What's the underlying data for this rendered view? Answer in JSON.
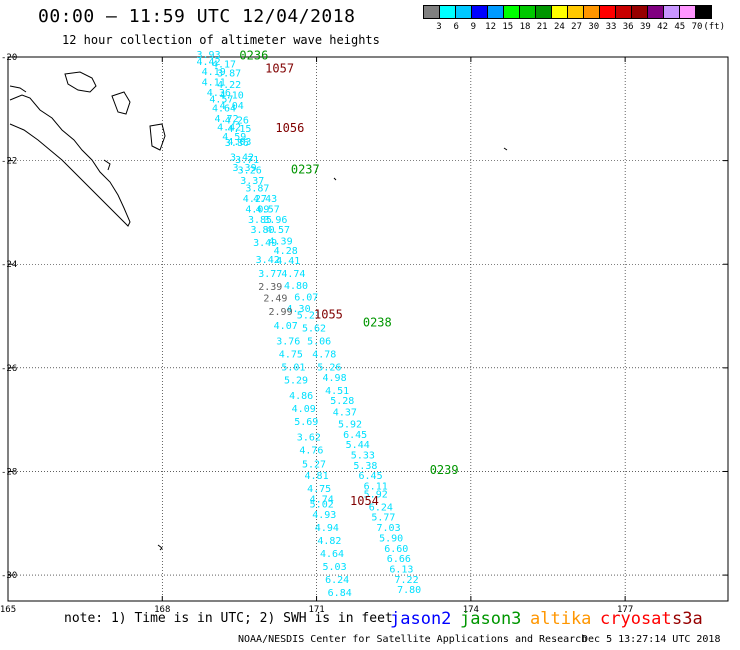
{
  "title": "00:00 – 11:59 UTC 12/04/2018",
  "subtitle": "12 hour collection of altimeter wave heights",
  "colorbar": {
    "colors": [
      "#808080",
      "#00ffff",
      "#00c8ff",
      "#0000ff",
      "#009bff",
      "#00ff00",
      "#00c800",
      "#009600",
      "#ffff00",
      "#ffc800",
      "#ff9600",
      "#ff0000",
      "#c80000",
      "#960000",
      "#800080",
      "#c896ff",
      "#ff96ff",
      "#000000"
    ],
    "labels": [
      "3",
      "6",
      "9",
      "12",
      "15",
      "18",
      "21",
      "24",
      "27",
      "30",
      "33",
      "36",
      "39",
      "42",
      "45",
      "70"
    ],
    "unit": "(ft)"
  },
  "map": {
    "lon_ticks": [
      "165",
      "168",
      "171",
      "174",
      "177"
    ],
    "lat_ticks": [
      "-20",
      "-22",
      "-24",
      "-26",
      "-28",
      "-30"
    ]
  },
  "tracks": [
    {
      "sat": "jason3",
      "time": "0236"
    },
    {
      "sat": "cryosat",
      "time": "1057"
    },
    {
      "sat": "cryosat",
      "time": "1056"
    },
    {
      "sat": "jason3",
      "time": "0237"
    },
    {
      "sat": "cryosat",
      "time": "1055"
    },
    {
      "sat": "jason3",
      "time": "0238"
    },
    {
      "sat": "jason3",
      "time": "0239"
    },
    {
      "sat": "cryosat",
      "time": "1054"
    }
  ],
  "obs": [
    {
      "v": "3.93",
      "lat": -20.02,
      "lon": 168.9,
      "c": "cyan"
    },
    {
      "v": "4.42",
      "lat": -20.15,
      "lon": 168.9,
      "c": "cyan"
    },
    {
      "v": "4.17",
      "lat": -20.2,
      "lon": 169.2,
      "c": "cyan"
    },
    {
      "v": "4.19",
      "lat": -20.35,
      "lon": 169.0,
      "c": "cyan"
    },
    {
      "v": "3.87",
      "lat": -20.38,
      "lon": 169.3,
      "c": "cyan"
    },
    {
      "v": "4.11",
      "lat": -20.55,
      "lon": 169.0,
      "c": "cyan"
    },
    {
      "v": "4.22",
      "lat": -20.6,
      "lon": 169.3,
      "c": "cyan"
    },
    {
      "v": "4.36",
      "lat": -20.75,
      "lon": 169.1,
      "c": "cyan"
    },
    {
      "v": "4.10",
      "lat": -20.8,
      "lon": 169.35,
      "c": "cyan"
    },
    {
      "v": "4.57",
      "lat": -20.88,
      "lon": 169.15,
      "c": "cyan"
    },
    {
      "v": "4.04",
      "lat": -21.0,
      "lon": 169.35,
      "c": "cyan"
    },
    {
      "v": "4.64",
      "lat": -21.05,
      "lon": 169.2,
      "c": "cyan"
    },
    {
      "v": "4.72",
      "lat": -21.25,
      "lon": 169.25,
      "c": "cyan"
    },
    {
      "v": "4.26",
      "lat": -21.28,
      "lon": 169.45,
      "c": "cyan"
    },
    {
      "v": "4.42",
      "lat": -21.42,
      "lon": 169.3,
      "c": "cyan"
    },
    {
      "v": "4.15",
      "lat": -21.45,
      "lon": 169.5,
      "c": "cyan"
    },
    {
      "v": "4.59",
      "lat": -21.6,
      "lon": 169.4,
      "c": "cyan"
    },
    {
      "v": "4.03",
      "lat": -21.7,
      "lon": 169.5,
      "c": "cyan"
    },
    {
      "v": "3.86",
      "lat": -21.72,
      "lon": 169.45,
      "c": "cyan"
    },
    {
      "v": "3.42",
      "lat": -22.0,
      "lon": 169.55,
      "c": "cyan"
    },
    {
      "v": "3.71",
      "lat": -22.05,
      "lon": 169.65,
      "c": "cyan"
    },
    {
      "v": "3.39",
      "lat": -22.2,
      "lon": 169.6,
      "c": "cyan"
    },
    {
      "v": "3.26",
      "lat": -22.25,
      "lon": 169.7,
      "c": "cyan"
    },
    {
      "v": "3.37",
      "lat": -22.45,
      "lon": 169.75,
      "c": "cyan"
    },
    {
      "v": "3.87",
      "lat": -22.6,
      "lon": 169.85,
      "c": "cyan"
    },
    {
      "v": "4.27",
      "lat": -22.8,
      "lon": 169.8,
      "c": "cyan"
    },
    {
      "v": "4.43",
      "lat": -22.8,
      "lon": 170.0,
      "c": "cyan"
    },
    {
      "v": "4.09",
      "lat": -23.0,
      "lon": 169.85,
      "c": "cyan"
    },
    {
      "v": "4.57",
      "lat": -23.0,
      "lon": 170.05,
      "c": "cyan"
    },
    {
      "v": "3.85",
      "lat": -23.2,
      "lon": 169.9,
      "c": "cyan"
    },
    {
      "v": "3.96",
      "lat": -23.2,
      "lon": 170.2,
      "c": "cyan"
    },
    {
      "v": "3.80",
      "lat": -23.4,
      "lon": 169.95,
      "c": "cyan"
    },
    {
      "v": "4.57",
      "lat": -23.4,
      "lon": 170.25,
      "c": "cyan"
    },
    {
      "v": "3.49",
      "lat": -23.65,
      "lon": 170.0,
      "c": "cyan"
    },
    {
      "v": "4.39",
      "lat": -23.62,
      "lon": 170.3,
      "c": "cyan"
    },
    {
      "v": "4.28",
      "lat": -23.8,
      "lon": 170.4,
      "c": "cyan"
    },
    {
      "v": "3.42",
      "lat": -23.98,
      "lon": 170.05,
      "c": "cyan"
    },
    {
      "v": "4.41",
      "lat": -24.0,
      "lon": 170.45,
      "c": "cyan"
    },
    {
      "v": "3.77",
      "lat": -24.25,
      "lon": 170.1,
      "c": "cyan"
    },
    {
      "v": "4.74",
      "lat": -24.25,
      "lon": 170.55,
      "c": "cyan"
    },
    {
      "v": "2.39",
      "lat": -24.5,
      "lon": 170.1,
      "c": "gray"
    },
    {
      "v": "4.80",
      "lat": -24.48,
      "lon": 170.6,
      "c": "cyan"
    },
    {
      "v": "6.07",
      "lat": -24.7,
      "lon": 170.8,
      "c": "cyan"
    },
    {
      "v": "2.49",
      "lat": -24.72,
      "lon": 170.2,
      "c": "gray"
    },
    {
      "v": "4.30",
      "lat": -24.92,
      "lon": 170.65,
      "c": "cyan"
    },
    {
      "v": "2.99",
      "lat": -24.98,
      "lon": 170.3,
      "c": "gray"
    },
    {
      "v": "5.21",
      "lat": -25.05,
      "lon": 170.85,
      "c": "cyan"
    },
    {
      "v": "4.07",
      "lat": -25.25,
      "lon": 170.4,
      "c": "cyan"
    },
    {
      "v": "5.62",
      "lat": -25.3,
      "lon": 170.95,
      "c": "cyan"
    },
    {
      "v": "3.76",
      "lat": -25.55,
      "lon": 170.45,
      "c": "cyan"
    },
    {
      "v": "5.06",
      "lat": -25.55,
      "lon": 171.05,
      "c": "cyan"
    },
    {
      "v": "4.75",
      "lat": -25.8,
      "lon": 170.5,
      "c": "cyan"
    },
    {
      "v": "4.78",
      "lat": -25.8,
      "lon": 171.15,
      "c": "cyan"
    },
    {
      "v": "5.01",
      "lat": -26.05,
      "lon": 170.55,
      "c": "cyan"
    },
    {
      "v": "5.26",
      "lat": -26.05,
      "lon": 171.25,
      "c": "cyan"
    },
    {
      "v": "5.29",
      "lat": -26.3,
      "lon": 170.6,
      "c": "cyan"
    },
    {
      "v": "4.98",
      "lat": -26.25,
      "lon": 171.35,
      "c": "cyan"
    },
    {
      "v": "4.51",
      "lat": -26.5,
      "lon": 171.4,
      "c": "cyan"
    },
    {
      "v": "4.86",
      "lat": -26.6,
      "lon": 170.7,
      "c": "cyan"
    },
    {
      "v": "5.28",
      "lat": -26.7,
      "lon": 171.5,
      "c": "cyan"
    },
    {
      "v": "4.09",
      "lat": -26.85,
      "lon": 170.75,
      "c": "cyan"
    },
    {
      "v": "4.37",
      "lat": -26.92,
      "lon": 171.55,
      "c": "cyan"
    },
    {
      "v": "5.69",
      "lat": -27.1,
      "lon": 170.8,
      "c": "cyan"
    },
    {
      "v": "5.92",
      "lat": -27.15,
      "lon": 171.65,
      "c": "cyan"
    },
    {
      "v": "6.45",
      "lat": -27.35,
      "lon": 171.75,
      "c": "cyan"
    },
    {
      "v": "3.62",
      "lat": -27.4,
      "lon": 170.85,
      "c": "cyan"
    },
    {
      "v": "5.44",
      "lat": -27.55,
      "lon": 171.8,
      "c": "cyan"
    },
    {
      "v": "4.76",
      "lat": -27.65,
      "lon": 170.9,
      "c": "cyan"
    },
    {
      "v": "5.33",
      "lat": -27.75,
      "lon": 171.9,
      "c": "cyan"
    },
    {
      "v": "5.27",
      "lat": -27.92,
      "lon": 170.95,
      "c": "cyan"
    },
    {
      "v": "5.38",
      "lat": -27.95,
      "lon": 171.95,
      "c": "cyan"
    },
    {
      "v": "6.45",
      "lat": -28.15,
      "lon": 172.05,
      "c": "cyan"
    },
    {
      "v": "4.81",
      "lat": -28.15,
      "lon": 171.0,
      "c": "cyan"
    },
    {
      "v": "6.11",
      "lat": -28.35,
      "lon": 172.15,
      "c": "cyan"
    },
    {
      "v": "4.75",
      "lat": -28.4,
      "lon": 171.05,
      "c": "cyan"
    },
    {
      "v": "5.92",
      "lat": -28.5,
      "lon": 172.15,
      "c": "cyan"
    },
    {
      "v": "4.74",
      "lat": -28.6,
      "lon": 171.1,
      "c": "cyan"
    },
    {
      "v": "5.02",
      "lat": -28.7,
      "lon": 171.1,
      "c": "cyan"
    },
    {
      "v": "6.24",
      "lat": -28.75,
      "lon": 172.25,
      "c": "cyan"
    },
    {
      "v": "4.93",
      "lat": -28.9,
      "lon": 171.15,
      "c": "cyan"
    },
    {
      "v": "5.77",
      "lat": -28.95,
      "lon": 172.3,
      "c": "cyan"
    },
    {
      "v": "4.94",
      "lat": -29.15,
      "lon": 171.2,
      "c": "cyan"
    },
    {
      "v": "7.03",
      "lat": -29.15,
      "lon": 172.4,
      "c": "cyan"
    },
    {
      "v": "5.90",
      "lat": -29.35,
      "lon": 172.45,
      "c": "cyan"
    },
    {
      "v": "4.82",
      "lat": -29.4,
      "lon": 171.25,
      "c": "cyan"
    },
    {
      "v": "6.60",
      "lat": -29.55,
      "lon": 172.55,
      "c": "cyan"
    },
    {
      "v": "4.64",
      "lat": -29.65,
      "lon": 171.3,
      "c": "cyan"
    },
    {
      "v": "6.66",
      "lat": -29.75,
      "lon": 172.6,
      "c": "cyan"
    },
    {
      "v": "5.03",
      "lat": -29.9,
      "lon": 171.35,
      "c": "cyan"
    },
    {
      "v": "6.13",
      "lat": -29.95,
      "lon": 172.65,
      "c": "cyan"
    },
    {
      "v": "7.22",
      "lat": -30.15,
      "lon": 172.75,
      "c": "cyan"
    },
    {
      "v": "6.24",
      "lat": -30.15,
      "lon": 171.4,
      "c": "cyan"
    },
    {
      "v": "7.80",
      "lat": -30.35,
      "lon": 172.8,
      "c": "cyan"
    },
    {
      "v": "6.84",
      "lat": -30.4,
      "lon": 171.45,
      "c": "cyan"
    }
  ],
  "note": "note: 1) Time is in UTC; 2) SWH is in feet",
  "satellites": [
    {
      "name": "jason2",
      "color": "#0000ff"
    },
    {
      "name": "jason3",
      "color": "#009600"
    },
    {
      "name": "altika",
      "color": "#ff9600"
    },
    {
      "name": "cryosat",
      "color": "#ff0000"
    },
    {
      "name": "s3a",
      "color": "#960000"
    }
  ],
  "credit": "NOAA/NESDIS Center for Satellite Applications and Research",
  "generated": "Dec  5 13:27:14 UTC 2018"
}
